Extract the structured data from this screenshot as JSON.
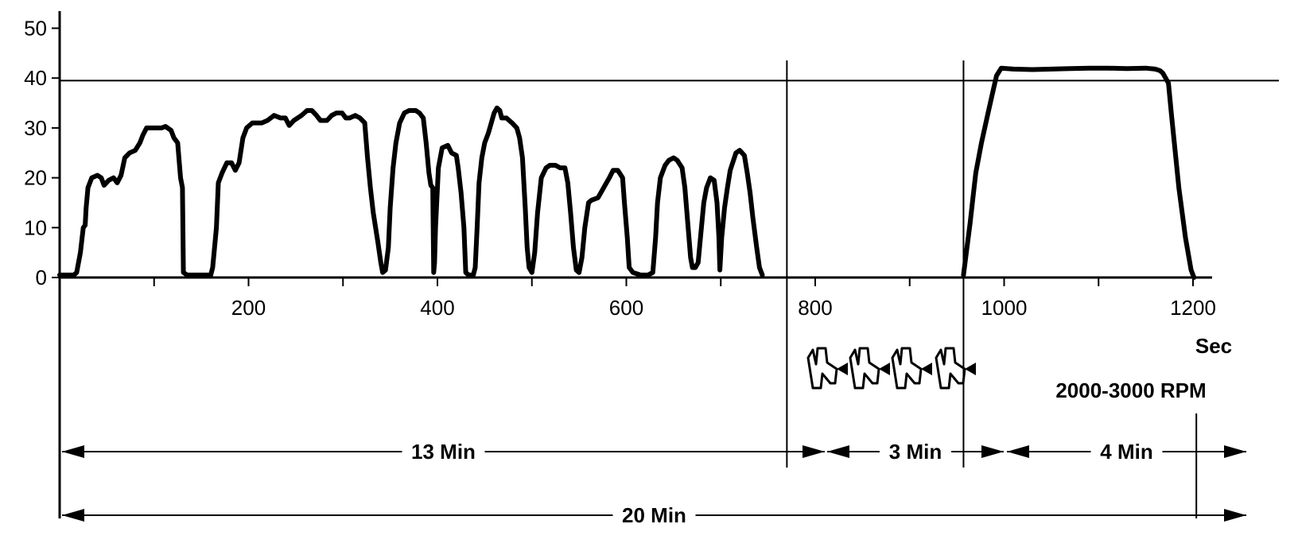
{
  "chart_data": {
    "type": "line",
    "title": "",
    "xlabel": "Sec",
    "ylabel": "",
    "xlim": [
      0,
      1215
    ],
    "ylim": [
      0,
      52
    ],
    "x_ticks": [
      200,
      400,
      600,
      800,
      1000,
      1200
    ],
    "y_ticks": [
      0,
      10,
      20,
      30,
      40,
      50
    ],
    "reference_line_y": 39.5,
    "phase_dividers_x": [
      770,
      957
    ],
    "series": [
      {
        "values": [
          [
            0,
            0.5
          ],
          [
            15,
            0.5
          ],
          [
            18,
            1
          ],
          [
            22,
            5
          ],
          [
            25,
            10
          ],
          [
            27,
            10.5
          ],
          [
            28,
            14
          ],
          [
            30,
            18
          ],
          [
            34,
            20
          ],
          [
            40,
            20.5
          ],
          [
            44,
            20
          ],
          [
            47,
            18.5
          ],
          [
            52,
            19.5
          ],
          [
            57,
            20
          ],
          [
            61,
            19
          ],
          [
            65,
            20.5
          ],
          [
            69,
            24
          ],
          [
            74,
            25
          ],
          [
            80,
            25.5
          ],
          [
            85,
            27
          ],
          [
            88,
            28.5
          ],
          [
            92,
            30
          ],
          [
            100,
            30
          ],
          [
            108,
            30
          ],
          [
            112,
            30.3
          ],
          [
            118,
            29.5
          ],
          [
            121,
            28
          ],
          [
            125,
            27
          ],
          [
            128,
            20
          ],
          [
            130,
            18
          ],
          [
            131,
            1
          ],
          [
            135,
            0.5
          ],
          [
            145,
            0.5
          ],
          [
            155,
            0.5
          ],
          [
            160,
            0.5
          ],
          [
            162,
            2
          ],
          [
            166,
            10
          ],
          [
            168,
            19
          ],
          [
            172,
            21
          ],
          [
            177,
            23
          ],
          [
            182,
            23
          ],
          [
            186,
            21.5
          ],
          [
            190,
            23
          ],
          [
            194,
            28
          ],
          [
            198,
            30
          ],
          [
            204,
            31
          ],
          [
            214,
            31
          ],
          [
            220,
            31.5
          ],
          [
            227,
            32.5
          ],
          [
            234,
            32
          ],
          [
            239,
            32
          ],
          [
            243,
            30.5
          ],
          [
            248,
            31.5
          ],
          [
            256,
            32.5
          ],
          [
            262,
            33.5
          ],
          [
            267,
            33.5
          ],
          [
            272,
            32.5
          ],
          [
            276,
            31.5
          ],
          [
            283,
            31.5
          ],
          [
            288,
            32.5
          ],
          [
            293,
            33
          ],
          [
            299,
            33
          ],
          [
            303,
            32
          ],
          [
            307,
            32
          ],
          [
            313,
            32.5
          ],
          [
            318,
            32
          ],
          [
            323,
            31
          ],
          [
            326,
            24
          ],
          [
            329,
            18
          ],
          [
            332,
            13
          ],
          [
            337,
            7
          ],
          [
            340,
            3
          ],
          [
            342,
            1
          ],
          [
            345,
            1.5
          ],
          [
            348,
            6
          ],
          [
            350,
            14
          ],
          [
            353,
            22
          ],
          [
            356,
            27
          ],
          [
            360,
            31
          ],
          [
            365,
            33
          ],
          [
            370,
            33.5
          ],
          [
            377,
            33.5
          ],
          [
            381,
            33
          ],
          [
            385,
            32
          ],
          [
            388,
            27
          ],
          [
            391,
            21
          ],
          [
            393,
            18.5
          ],
          [
            395,
            18
          ],
          [
            396,
            1
          ],
          [
            397,
            3
          ],
          [
            398,
            10
          ],
          [
            401,
            22
          ],
          [
            405,
            26
          ],
          [
            411,
            26.5
          ],
          [
            415,
            25
          ],
          [
            420,
            24.5
          ],
          [
            422,
            22
          ],
          [
            425,
            17
          ],
          [
            428,
            10
          ],
          [
            430,
            1
          ],
          [
            433,
            0.5
          ],
          [
            438,
            0.5
          ],
          [
            440,
            2
          ],
          [
            442,
            10
          ],
          [
            444,
            19
          ],
          [
            447,
            24
          ],
          [
            450,
            27
          ],
          [
            454,
            29
          ],
          [
            460,
            33
          ],
          [
            463,
            34
          ],
          [
            466,
            33.5
          ],
          [
            468,
            32
          ],
          [
            473,
            32
          ],
          [
            479,
            31
          ],
          [
            484,
            30
          ],
          [
            487,
            28
          ],
          [
            490,
            24
          ],
          [
            493,
            14
          ],
          [
            495,
            6
          ],
          [
            497,
            2
          ],
          [
            500,
            1
          ],
          [
            503,
            5
          ],
          [
            506,
            13
          ],
          [
            510,
            20
          ],
          [
            515,
            22
          ],
          [
            519,
            22.5
          ],
          [
            525,
            22.5
          ],
          [
            530,
            22
          ],
          [
            535,
            22
          ],
          [
            538,
            19
          ],
          [
            541,
            13
          ],
          [
            544,
            6
          ],
          [
            547,
            1.5
          ],
          [
            550,
            1
          ],
          [
            553,
            4
          ],
          [
            556,
            10
          ],
          [
            560,
            15
          ],
          [
            563,
            15.5
          ],
          [
            570,
            16
          ],
          [
            576,
            18
          ],
          [
            582,
            20
          ],
          [
            586,
            21.5
          ],
          [
            591,
            21.5
          ],
          [
            596,
            20
          ],
          [
            598,
            15
          ],
          [
            601,
            8
          ],
          [
            603,
            2
          ],
          [
            607,
            1
          ],
          [
            615,
            0.5
          ],
          [
            623,
            0.5
          ],
          [
            628,
            1
          ],
          [
            631,
            8
          ],
          [
            633,
            15
          ],
          [
            636,
            20
          ],
          [
            641,
            22.5
          ],
          [
            645,
            23.5
          ],
          [
            650,
            24
          ],
          [
            654,
            23.5
          ],
          [
            659,
            22
          ],
          [
            662,
            18
          ],
          [
            665,
            11
          ],
          [
            668,
            4
          ],
          [
            670,
            2
          ],
          [
            673,
            2
          ],
          [
            676,
            3
          ],
          [
            679,
            9
          ],
          [
            682,
            15
          ],
          [
            685,
            18
          ],
          [
            689,
            20
          ],
          [
            693,
            19.5
          ],
          [
            696,
            15
          ],
          [
            698,
            8
          ],
          [
            699,
            1.5
          ],
          [
            701,
            8
          ],
          [
            704,
            14
          ],
          [
            707,
            18
          ],
          [
            710,
            21.5
          ],
          [
            716,
            25
          ],
          [
            720,
            25.5
          ],
          [
            725,
            24.5
          ],
          [
            728,
            21
          ],
          [
            731,
            17
          ],
          [
            734,
            12
          ],
          [
            738,
            6
          ],
          [
            741,
            2
          ],
          [
            744,
            0.5
          ],
          [
            957,
            0.5
          ],
          [
            960,
            5
          ],
          [
            964,
            11
          ],
          [
            967,
            16
          ],
          [
            970,
            21
          ],
          [
            976,
            27
          ],
          [
            983,
            33
          ],
          [
            989,
            38
          ],
          [
            992,
            40.5
          ],
          [
            997,
            42
          ],
          [
            1010,
            41.8
          ],
          [
            1030,
            41.7
          ],
          [
            1050,
            41.8
          ],
          [
            1070,
            41.9
          ],
          [
            1090,
            42
          ],
          [
            1110,
            42
          ],
          [
            1130,
            41.9
          ],
          [
            1150,
            42
          ],
          [
            1160,
            41.8
          ],
          [
            1165,
            41.5
          ],
          [
            1168,
            41
          ],
          [
            1171,
            40
          ],
          [
            1174,
            39
          ],
          [
            1177,
            33
          ],
          [
            1185,
            18
          ],
          [
            1192,
            8
          ],
          [
            1198,
            1.5
          ],
          [
            1201,
            0
          ]
        ]
      }
    ]
  },
  "annotations": {
    "unit_label": "Sec",
    "rpm_label": "2000-3000 RPM",
    "phase_1_label": "13 Min",
    "phase_2_label": "3 Min",
    "phase_3_label": "4 Min",
    "total_label": "20 Min",
    "phase_2_icon": "revving-accelerator-pedal-icon"
  },
  "colors": {
    "line": "#000000",
    "background": "#ffffff"
  }
}
